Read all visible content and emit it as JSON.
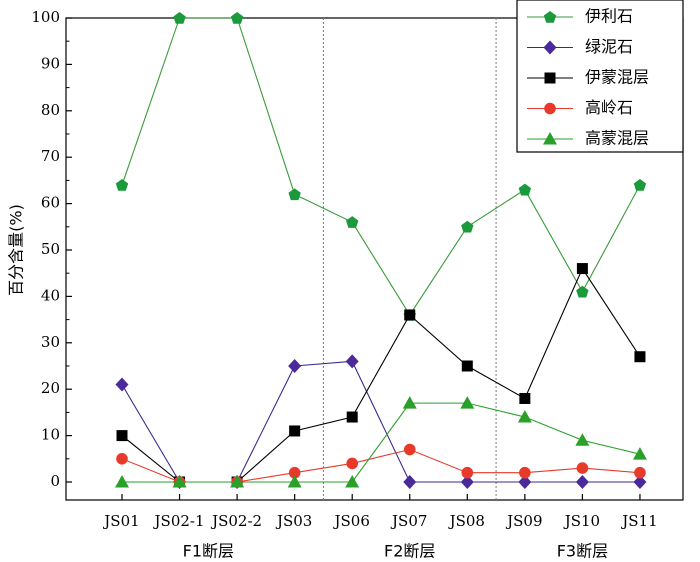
{
  "chart_data": {
    "type": "line",
    "ylabel": "百分含量(%)",
    "ylim": [
      0,
      100
    ],
    "yticks": [
      0,
      10,
      20,
      30,
      40,
      50,
      60,
      70,
      80,
      90,
      100
    ],
    "categories": [
      "JS01",
      "JS02-1",
      "JS02-2",
      "JS03",
      "JS06",
      "JS07",
      "JS08",
      "JS09",
      "JS10",
      "JS11"
    ],
    "groups": [
      {
        "label": "F1断层",
        "from": 0,
        "to": 3
      },
      {
        "label": "F2断层",
        "from": 4,
        "to": 6
      },
      {
        "label": "F3断层",
        "from": 7,
        "to": 9
      }
    ],
    "grid": false,
    "legend_position": "top-right",
    "series": [
      {
        "name": "伊利石",
        "values": [
          64,
          100,
          100,
          62,
          56,
          36,
          55,
          63,
          41,
          64
        ],
        "color": "#3a9a3a",
        "marker_color": "#1a9a3a",
        "marker": "pentagon"
      },
      {
        "name": "绿泥石",
        "values": [
          21,
          0,
          0,
          25,
          26,
          0,
          0,
          0,
          0,
          0
        ],
        "color": "#3a2a8c",
        "marker_color": "#4a2a9a",
        "marker": "diamond"
      },
      {
        "name": "伊蒙混层",
        "values": [
          10,
          0,
          0,
          11,
          14,
          36,
          25,
          18,
          46,
          27
        ],
        "color": "#000000",
        "marker_color": "#000000",
        "marker": "square"
      },
      {
        "name": "高岭石",
        "values": [
          5,
          0,
          0,
          2,
          4,
          7,
          2,
          2,
          3,
          2
        ],
        "color": "#e83a2a",
        "marker_color": "#e83a2a",
        "marker": "circle"
      },
      {
        "name": "高蒙混层",
        "values": [
          0,
          0,
          0,
          0,
          0,
          17,
          17,
          14,
          9,
          6
        ],
        "color": "#2aa02a",
        "marker_color": "#2aa02a",
        "marker": "triangle"
      }
    ]
  }
}
